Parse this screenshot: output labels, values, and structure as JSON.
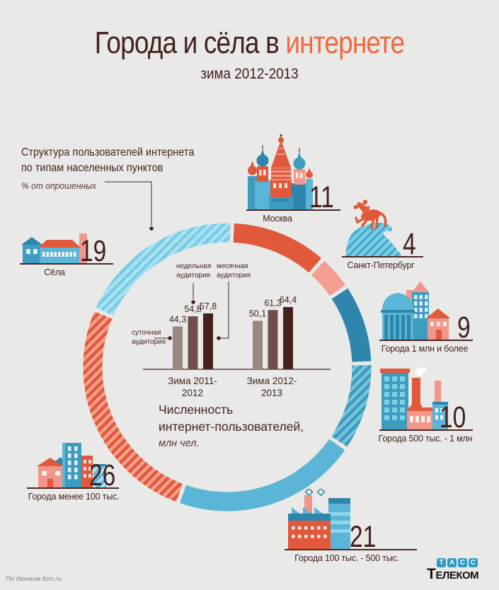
{
  "title": {
    "prefix": "Города и сёла в ",
    "highlight": "интернете",
    "subtitle": "зима 2012-2013"
  },
  "intro": {
    "line1": "Структура пользователей интернета",
    "line2": "по типам населенных пунктов",
    "note": "% от опрошенных"
  },
  "chart_data": [
    {
      "type": "pie",
      "title": "Структура пользователей интернета по типам населенных пунктов, % от опрошенных",
      "start_angle_deg": 2,
      "gap_deg": 1.6,
      "segments": [
        {
          "id": "moskva",
          "label": "Москва",
          "value": 11,
          "style": "solid",
          "color": "#e2583a"
        },
        {
          "id": "spb",
          "label": "Санкт-Петербург",
          "value": 4,
          "style": "solid",
          "color": "#f49e92"
        },
        {
          "id": "m1plus",
          "label": "Города 1 млн и более",
          "value": 9,
          "style": "solid",
          "color": "#2e86ad"
        },
        {
          "id": "k500-1m",
          "label": "Города 500 тыс. - 1 млн",
          "value": 10,
          "style": "striped",
          "color": "#3e9abc",
          "stripe": "#74c4dc"
        },
        {
          "id": "k100-500",
          "label": "Города 100 тыс. - 500 тыс.",
          "value": 21,
          "style": "solid",
          "color": "#5ab5d7"
        },
        {
          "id": "less100",
          "label": "Города менее 100 тыс.",
          "value": 26,
          "style": "striped",
          "color": "#e2583a",
          "stripe": "#f2a08d"
        },
        {
          "id": "sela",
          "label": "Сёла",
          "value": 19,
          "style": "striped",
          "color": "#79cde4",
          "stripe": "#a9e2f2"
        }
      ]
    },
    {
      "type": "bar",
      "title": "Численность интернет-пользователей, млн чел.",
      "categories": [
        "Зима 2011-2012",
        "Зима 2012-2013"
      ],
      "series": [
        {
          "name": "суточная аудитория",
          "values": [
            44.3,
            50.1
          ]
        },
        {
          "name": "недельная аудитория",
          "values": [
            54.8,
            61.3
          ]
        },
        {
          "name": "месячная аудитория",
          "values": [
            57.8,
            64.4
          ]
        }
      ],
      "value_labels": [
        [
          "44,3",
          "54,8",
          "57,8"
        ],
        [
          "50,1",
          "61,3",
          "64,4"
        ]
      ],
      "bar_colors": [
        "#9b8680",
        "#6e4e46",
        "#44211c"
      ],
      "ylim": [
        0,
        70
      ],
      "grid": false,
      "legend_position": "callouts"
    }
  ],
  "center_caption": {
    "line1": "Численность",
    "line2": "интернет-пользователей,",
    "note": "млн чел."
  },
  "locations": [
    {
      "id": "moskva",
      "label": "Москва",
      "value": "11"
    },
    {
      "id": "spb",
      "label": "Санкт-Петербург",
      "value": "4"
    },
    {
      "id": "m1plus",
      "label": "Города 1 млн и более",
      "value": "9"
    },
    {
      "id": "k500-1m",
      "label": "Города 500 тыс. - 1 млн",
      "value": "10"
    },
    {
      "id": "k100-500",
      "label": "Города 100 тыс. - 500 тыс.",
      "value": "21"
    },
    {
      "id": "less100",
      "label": "Города менее 100 тыс.",
      "value": "26"
    },
    {
      "id": "sela",
      "label": "Сёла",
      "value": "19"
    }
  ],
  "footer": {
    "source": "По данным fom.ru",
    "logo_tiles": [
      "Т",
      "А",
      "С",
      "С"
    ],
    "logo_text": "Телеком"
  }
}
